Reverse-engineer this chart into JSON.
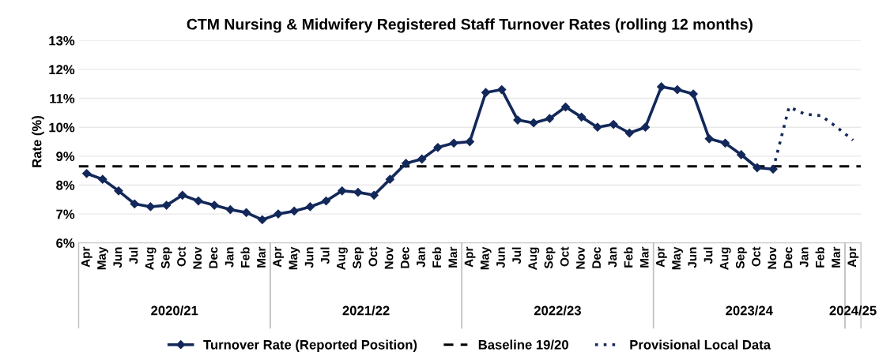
{
  "chart_data": {
    "type": "line",
    "title": "CTM Nursing & Midwifery Registered Staff Turnover Rates (rolling 12 months)",
    "ylabel": "Rate (%)",
    "categories": [
      "Apr",
      "May",
      "Jun",
      "Jul",
      "Aug",
      "Sep",
      "Oct",
      "Nov",
      "Dec",
      "Jan",
      "Feb",
      "Mar",
      "Apr",
      "May",
      "Jun",
      "Jul",
      "Aug",
      "Sep",
      "Oct",
      "Nov",
      "Dec",
      "Jan",
      "Feb",
      "Mar",
      "Apr",
      "May",
      "Jun",
      "Jul",
      "Aug",
      "Sep",
      "Oct",
      "Nov",
      "Dec",
      "Jan",
      "Feb",
      "Mar",
      "Apr",
      "May",
      "Jun",
      "Jul",
      "Aug",
      "Sep",
      "Oct",
      "Nov",
      "Dec",
      "Jan",
      "Feb",
      "Mar",
      "Apr"
    ],
    "series": [
      {
        "name": "Turnover Rate (Reported Position)",
        "color": "#13285a",
        "marker": "diamond",
        "line_style": "solid",
        "values": [
          8.4,
          8.2,
          7.8,
          7.35,
          7.25,
          7.3,
          7.65,
          7.45,
          7.3,
          7.15,
          7.05,
          6.8,
          7.0,
          7.1,
          7.25,
          7.45,
          7.8,
          7.75,
          7.65,
          8.2,
          8.75,
          8.9,
          9.3,
          9.45,
          9.5,
          11.2,
          11.3,
          10.25,
          10.15,
          10.3,
          10.7,
          10.35,
          10.0,
          10.1,
          9.8,
          10.0,
          11.4,
          11.3,
          11.15,
          9.6,
          9.45,
          9.05,
          8.6,
          8.55,
          null,
          null,
          null,
          null,
          null
        ]
      },
      {
        "name": "Provisional Local Data",
        "color": "#13285a",
        "marker": "none",
        "line_style": "dotted",
        "values": [
          null,
          null,
          null,
          null,
          null,
          null,
          null,
          null,
          null,
          null,
          null,
          null,
          null,
          null,
          null,
          null,
          null,
          null,
          null,
          null,
          null,
          null,
          null,
          null,
          null,
          null,
          null,
          null,
          null,
          null,
          null,
          null,
          null,
          null,
          null,
          null,
          null,
          null,
          null,
          null,
          null,
          null,
          null,
          8.55,
          10.7,
          10.45,
          10.4,
          10.0,
          9.55
        ]
      }
    ],
    "ref_lines": [
      {
        "axis": "y",
        "value": 8.65,
        "label": "Baseline 19/20",
        "color": "#000000",
        "line_style": "dashed"
      }
    ],
    "ylim": [
      6,
      13
    ],
    "yticks": [
      {
        "value": 6,
        "label": "6%"
      },
      {
        "value": 7,
        "label": "7%"
      },
      {
        "value": 8,
        "label": "8%"
      },
      {
        "value": 9,
        "label": "9%"
      },
      {
        "value": 10,
        "label": "10%"
      },
      {
        "value": 11,
        "label": "11%"
      },
      {
        "value": 12,
        "label": "12%"
      },
      {
        "value": 13,
        "label": "13%"
      }
    ],
    "annotations": [
      "2020/21",
      "2021/22",
      "2022/23",
      "2023/24",
      "2024/25"
    ],
    "grid": "y",
    "legend": "bottom"
  }
}
